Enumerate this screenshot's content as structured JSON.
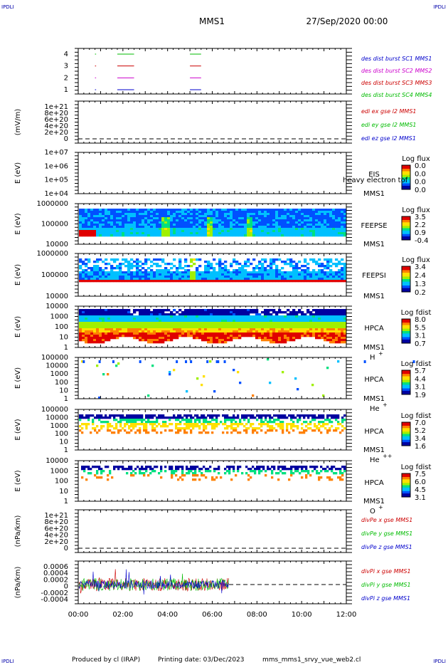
{
  "header": {
    "corner_left": "IPDLI",
    "corner_right": "IPDLI",
    "spacecraft": "MMS1",
    "datetime": "27/Sep/2020 00:00"
  },
  "footer": {
    "produced_by": "Produced by cl (IRAP)",
    "printing_date": "Printing date: 03/Dec/2023",
    "script_name": "mms_mms1_srvy_vue_web2.cl",
    "corner_left": "IPDLI",
    "corner_right": "IPDLI"
  },
  "time_axis": {
    "ticks": [
      "00:00",
      "02:00",
      "04:00",
      "06:00",
      "08:00",
      "10:00",
      "12:00"
    ]
  },
  "chart_data": [
    {
      "type": "line",
      "id": "burst",
      "yticks": [
        "4",
        "3",
        "2",
        "1"
      ],
      "legend": [
        {
          "text": "des dist burst SC1 MMS1",
          "color": "#0000cc"
        },
        {
          "text": "des dist burst SC2 MMS2",
          "color": "#cc00cc"
        },
        {
          "text": "des dist burst SC3 MMS3",
          "color": "#cc0000"
        },
        {
          "text": "des dist burst SC4 MMS4",
          "color": "#00bb00"
        }
      ],
      "series": [
        {
          "level": 4,
          "color": "#00bb00",
          "intervals": [
            [
              0.75,
              0.8
            ],
            [
              1.75,
              2.5
            ],
            [
              5.0,
              5.5
            ]
          ]
        },
        {
          "level": 3,
          "color": "#cc0000",
          "intervals": [
            [
              0.75,
              0.8
            ],
            [
              1.75,
              2.5
            ],
            [
              5.0,
              5.5
            ]
          ]
        },
        {
          "level": 2,
          "color": "#cc00cc",
          "intervals": [
            [
              0.75,
              0.8
            ],
            [
              1.75,
              2.5
            ],
            [
              5.0,
              5.5
            ]
          ]
        },
        {
          "level": 1,
          "color": "#0000cc",
          "intervals": [
            [
              0.75,
              0.8
            ],
            [
              1.75,
              2.5
            ],
            [
              5.0,
              5.5
            ]
          ]
        }
      ]
    },
    {
      "type": "line",
      "id": "edi",
      "ylabel": "(mV/m)",
      "yticks": [
        "1e+21",
        "8e+20",
        "6e+20",
        "4e+20",
        "2e+20",
        "0"
      ],
      "legend": [
        {
          "text": "edi ex gse l2 MMS1",
          "color": "#cc0000"
        },
        {
          "text": "edi ey gse l2 MMS1",
          "color": "#00bb00"
        },
        {
          "text": "edi ez gse l2 MMS1",
          "color": "#0000cc"
        }
      ]
    },
    {
      "type": "heatmap",
      "id": "eis",
      "ylabel": "E (eV)",
      "yticks": [
        "1e+07",
        "1e+06",
        "1e+05",
        "1e+04"
      ],
      "instrument": "EIS",
      "spacecraft": "MMS1",
      "overlay_text": "heavy electron tof",
      "colorbar_title": "Log flux",
      "colorbar_ticks": [
        "0.0",
        "0.0",
        "0.0",
        "0.0"
      ]
    },
    {
      "type": "heatmap",
      "id": "feepse",
      "ylabel": "E (eV)",
      "yticks": [
        "1000000",
        "100000",
        "10000"
      ],
      "instrument": "FEEPSE",
      "spacecraft": "MMS1",
      "colorbar_title": "Log flux",
      "colorbar_ticks": [
        "3.5",
        "2.2",
        "0.9",
        "-0.4"
      ]
    },
    {
      "type": "heatmap",
      "id": "feepsi",
      "ylabel": "E (eV)",
      "yticks": [
        "1000000",
        "100000",
        "10000"
      ],
      "instrument": "FEEPSI",
      "spacecraft": "MMS1",
      "colorbar_title": "Log flux",
      "colorbar_ticks": [
        "3.4",
        "2.4",
        "1.3",
        "0.2"
      ]
    },
    {
      "type": "heatmap",
      "id": "hpca_h",
      "ylabel": "E (eV)",
      "yticks": [
        "10000",
        "1000",
        "100",
        "10",
        "1"
      ],
      "instrument": "HPCA",
      "spacecraft": "MMS1",
      "species": "H",
      "species_charge": "+",
      "colorbar_title": "Log fdist",
      "colorbar_ticks": [
        "8.0",
        "5.5",
        "3.1",
        "0.7"
      ]
    },
    {
      "type": "heatmap",
      "id": "hpca_he1",
      "ylabel": "E (eV)",
      "yticks": [
        "100000",
        "10000",
        "1000",
        "100",
        "10",
        "1"
      ],
      "instrument": "HPCA",
      "spacecraft": "MMS1",
      "species": "He",
      "species_charge": "+",
      "colorbar_title": "Log fdist",
      "colorbar_ticks": [
        "5.7",
        "4.4",
        "3.1",
        "1.9"
      ]
    },
    {
      "type": "heatmap",
      "id": "hpca_he2",
      "ylabel": "E (eV)",
      "yticks": [
        "100000",
        "10000",
        "1000",
        "100",
        "10",
        "1"
      ],
      "instrument": "HPCA",
      "spacecraft": "MMS1",
      "species": "He",
      "species_charge": "++",
      "colorbar_title": "Log fdist",
      "colorbar_ticks": [
        "7.0",
        "5.2",
        "3.4",
        "1.6"
      ]
    },
    {
      "type": "heatmap",
      "id": "hpca_o",
      "ylabel": "E (eV)",
      "yticks": [
        "10000",
        "1000",
        "100",
        "10",
        "1"
      ],
      "instrument": "HPCA",
      "spacecraft": "MMS1",
      "species": "O",
      "species_charge": "+",
      "colorbar_title": "Log fdist",
      "colorbar_ticks": [
        "7.5",
        "6.0",
        "4.5",
        "3.1"
      ]
    },
    {
      "type": "line",
      "id": "divpe",
      "ylabel": "(nPa/km)",
      "yticks": [
        "1e+21",
        "8e+20",
        "6e+20",
        "4e+20",
        "2e+20",
        "0"
      ],
      "legend": [
        {
          "text": "divPe x gse MMS1",
          "color": "#cc0000"
        },
        {
          "text": "divPe y gse MMS1",
          "color": "#00bb00"
        },
        {
          "text": "divPe z gse MMS1",
          "color": "#0000cc"
        }
      ]
    },
    {
      "type": "line",
      "id": "divpi",
      "ylabel": "(nPa/km)",
      "yticks": [
        "0.0006",
        "0.0004",
        "0.0002",
        "0",
        "-0.0002",
        "-0.0004"
      ],
      "legend": [
        {
          "text": "divPi x gse MMS1",
          "color": "#cc0000"
        },
        {
          "text": "divPi y gse MMS1",
          "color": "#00bb00"
        },
        {
          "text": "divPi z gse MMS1",
          "color": "#0000cc"
        }
      ],
      "data_end_hour": 6.75,
      "noise_amplitude": 0.0001
    }
  ],
  "colors": {
    "axis": "#000000",
    "spectro_scale": [
      "#0000a0",
      "#0050ff",
      "#00c0ff",
      "#00e080",
      "#a0f000",
      "#ffe000",
      "#ff8000",
      "#e00000"
    ]
  }
}
